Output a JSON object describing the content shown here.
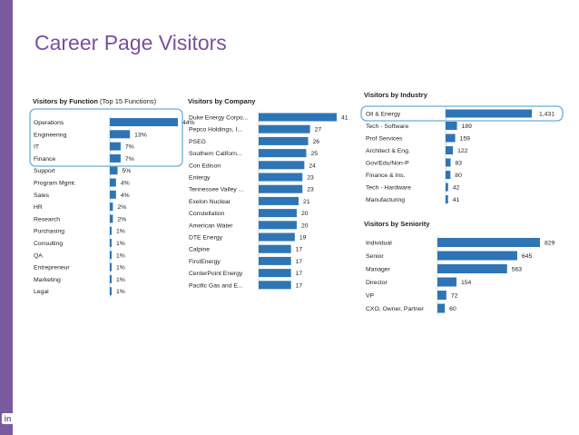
{
  "page": {
    "title": "Career Page Visitors",
    "logo_text": "in",
    "accent_color": "#7a5a9e",
    "title_color": "#7a4f9e",
    "bar_color": "#2e75b6",
    "highlight_color": "#6aaed6"
  },
  "chart_data": [
    {
      "id": "function",
      "type": "bar",
      "orientation": "horizontal",
      "title": "Visitors by Function",
      "subtitle": "(Top 15 Functions)",
      "value_format": "percent",
      "categories": [
        "Operations",
        "Engineering",
        "IT",
        "Finance",
        "Support",
        "Program Mgmt.",
        "Sales",
        "HR",
        "Research",
        "Purchasing",
        "Consulting",
        "QA",
        "Entrepreneur",
        "Marketing",
        "Legal"
      ],
      "values": [
        44,
        13,
        7,
        7,
        5,
        4,
        4,
        2,
        2,
        1,
        1,
        1,
        1,
        1,
        1
      ],
      "highlighted_categories": [
        "Operations",
        "Engineering",
        "IT",
        "Finance"
      ]
    },
    {
      "id": "company",
      "type": "bar",
      "orientation": "horizontal",
      "title": "Visitors by Company",
      "value_format": "number",
      "categories": [
        "Duke Energy Corpo...",
        "Pepco Holdings, I...",
        "PSEG",
        "Southern Californ...",
        "Con Edison",
        "Entergy",
        "Tennessee Valley ...",
        "Exelon Nuclear",
        "Constellation",
        "American Water",
        "DTE Energy",
        "Calpine",
        "FirstEnergy",
        "CenterPoint Energy",
        "Pacific Gas and E..."
      ],
      "values": [
        41,
        27,
        26,
        25,
        24,
        23,
        23,
        21,
        20,
        20,
        19,
        17,
        17,
        17,
        17
      ]
    },
    {
      "id": "industry",
      "type": "bar",
      "orientation": "horizontal",
      "title": "Visitors by Industry",
      "value_format": "number",
      "categories": [
        "Oil & Energy",
        "Tech - Software",
        "Prof Services",
        "Architect & Eng.",
        "Gov/Edu/Non-P",
        "Finance & Ins.",
        "Tech - Hardware",
        "Manufacturing"
      ],
      "values": [
        1431,
        189,
        159,
        122,
        83,
        80,
        42,
        41
      ],
      "value_labels": [
        "1,431",
        "189",
        "159",
        "122",
        "83",
        "80",
        "42",
        "41"
      ],
      "highlighted_categories": [
        "Oil & Energy"
      ]
    },
    {
      "id": "seniority",
      "type": "bar",
      "orientation": "horizontal",
      "title": "Visitors by Seniority",
      "value_format": "number",
      "categories": [
        "Individual",
        "Senior",
        "Manager",
        "Director",
        "VP",
        "CXO, Owner, Partner"
      ],
      "values": [
        829,
        645,
        563,
        154,
        72,
        60
      ]
    }
  ]
}
